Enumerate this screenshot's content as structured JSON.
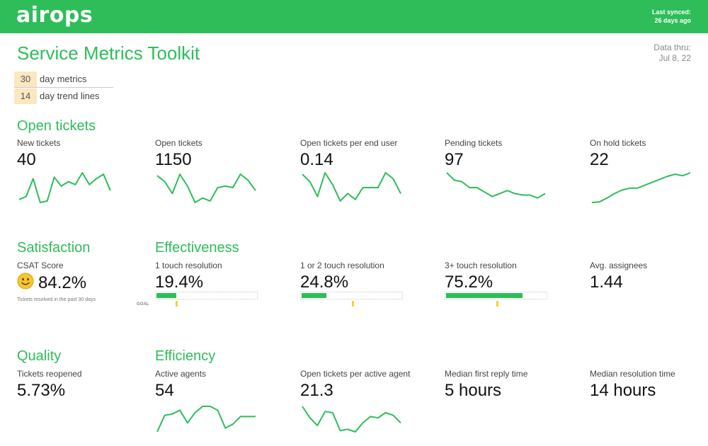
{
  "brand": {
    "logo": "airops"
  },
  "sync": {
    "line1": "Last synced:",
    "line2": "26 days ago"
  },
  "page": {
    "title": "Service Metrics Toolkit",
    "data_thru_label": "Data thru:",
    "data_thru_date": "Jul 8, 22"
  },
  "params": [
    {
      "num": "30",
      "label": "day metrics"
    },
    {
      "num": "14",
      "label": "day trend lines"
    }
  ],
  "sections": {
    "open_tickets": "Open tickets",
    "satisfaction": "Satisfaction",
    "effectiveness": "Effectiveness",
    "quality": "Quality",
    "efficiency": "Efficiency"
  },
  "row1": [
    {
      "label": "New tickets",
      "value": "40",
      "trend": [
        0.1,
        0.2,
        0.8,
        0.0,
        0.05,
        0.85,
        0.55,
        0.7,
        0.6,
        1.0,
        0.6,
        0.8,
        0.95,
        0.4
      ]
    },
    {
      "label": "Open tickets",
      "value": "1150",
      "trend": [
        0.9,
        0.7,
        0.3,
        0.95,
        0.55,
        0.0,
        0.15,
        0.05,
        0.5,
        0.55,
        0.5,
        0.95,
        0.75,
        0.4
      ]
    },
    {
      "label": "Open tickets per end user",
      "value": "0.14",
      "trend": [
        0.95,
        0.7,
        0.2,
        1.0,
        0.6,
        0.05,
        0.3,
        0.1,
        0.5,
        0.5,
        0.5,
        1.0,
        0.8,
        0.3
      ]
    },
    {
      "label": "Pending tickets",
      "value": "97",
      "trend": [
        1.0,
        0.75,
        0.7,
        0.5,
        0.5,
        0.35,
        0.2,
        0.3,
        0.4,
        0.3,
        0.25,
        0.25,
        0.15,
        0.3
      ]
    },
    {
      "label": "On hold tickets",
      "value": "22",
      "trend": [
        0.0,
        0.02,
        0.15,
        0.3,
        0.42,
        0.48,
        0.48,
        0.58,
        0.68,
        0.78,
        0.88,
        0.95,
        0.9,
        1.0
      ]
    }
  ],
  "row2": {
    "csat": {
      "label": "CSAT Score",
      "value": "84.2%",
      "note": "Tickets resolved in the past 30 days"
    },
    "bars": [
      {
        "label": "1 touch resolution",
        "value": "19.4%",
        "fraction": 0.194,
        "goal": 0.2,
        "goal_label": "GOAL"
      },
      {
        "label": "1 or 2 touch resolution",
        "value": "24.8%",
        "fraction": 0.248,
        "goal": 0.5
      },
      {
        "label": "3+ touch resolution",
        "value": "75.2%",
        "fraction": 0.752,
        "goal": 0.5
      }
    ],
    "assignees": {
      "label": "Avg. assignees",
      "value": "1.44"
    }
  },
  "row3": {
    "reopened": {
      "label": "Tickets reopened",
      "value": "5.73%"
    },
    "active_agents": {
      "label": "Active agents",
      "value": "54",
      "trend": [
        0.0,
        0.65,
        0.7,
        0.85,
        0.35,
        0.75,
        1.0,
        1.0,
        0.85,
        0.15,
        0.3,
        0.6,
        0.6,
        0.6
      ]
    },
    "per_agent": {
      "label": "Open tickets per active agent",
      "value": "21.3",
      "trend": [
        1.0,
        0.55,
        0.25,
        0.8,
        0.75,
        0.05,
        0.1,
        0.0,
        0.35,
        0.6,
        0.55,
        0.75,
        0.65,
        0.35
      ]
    },
    "first_reply": {
      "label": "Median first reply time",
      "value": "5 hours"
    },
    "resolution": {
      "label": "Median resolution time",
      "value": "14 hours"
    }
  },
  "colors": {
    "brand_green": "#2ebd59",
    "param_bg": "#fbe8bf",
    "goal_yellow": "#f0d23a"
  }
}
